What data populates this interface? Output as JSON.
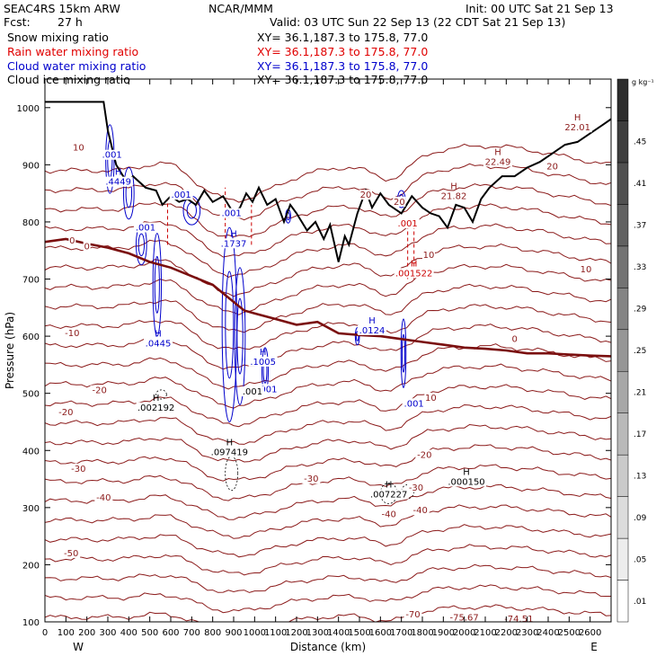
{
  "header": {
    "model": "SEAC4RS 15km ARW",
    "org": "NCAR/MMM",
    "init": "Init: 00 UTC Sat 21 Sep 13",
    "fcst_label": "Fcst:",
    "fcst_value": "27 h",
    "valid": "Valid: 03 UTC Sun 22 Sep 13 (22 CDT Sat 21 Sep 13)",
    "fields": [
      {
        "name": "Snow mixing ratio",
        "xy": "XY=  36.1,187.3 to 175.8, 77.0",
        "color": "#000000"
      },
      {
        "name": "Rain water mixing ratio",
        "xy": "XY=  36.1,187.3 to 175.8, 77.0",
        "color": "#e00000"
      },
      {
        "name": "Cloud water mixing ratio",
        "xy": "XY=  36.1,187.3 to 175.8, 77.0",
        "color": "#0000cc"
      },
      {
        "name": "Cloud ice mixing ratio",
        "xy": "XY=  36.1,187.3 to 175.8, 77.0",
        "color": "#000000"
      }
    ]
  },
  "chart_data": {
    "type": "cross-section contour",
    "xlabel": "Distance (km)",
    "ylabel": "Pressure (hPa)",
    "xlim": [
      0,
      2700
    ],
    "ylim": [
      1050,
      100
    ],
    "x_ticks": [
      0,
      100,
      200,
      300,
      400,
      500,
      600,
      700,
      800,
      900,
      1000,
      1100,
      1200,
      1300,
      1400,
      1500,
      1600,
      1700,
      1800,
      1900,
      2000,
      2100,
      2200,
      2300,
      2400,
      2500,
      2600
    ],
    "y_ticks": [
      100,
      200,
      300,
      400,
      500,
      600,
      700,
      800,
      900,
      1000
    ],
    "x_end_labels": [
      "W",
      "E"
    ],
    "colorbar": {
      "unit": "g kg⁻¹",
      "levels": [
        ".01",
        ".05",
        ".09",
        ".13",
        ".17",
        ".21",
        ".25",
        ".29",
        ".33",
        ".37",
        ".41",
        ".45"
      ]
    },
    "isotherms": [
      {
        "label": "-70",
        "pressure": 115
      },
      {
        "label": "-50",
        "pressure": 205
      },
      {
        "label": "-40",
        "pressure": 300
      },
      {
        "label": "-30",
        "pressure": 345
      },
      {
        "label": "-20",
        "pressure": 452
      },
      {
        "label": "-10",
        "pressure": 540
      },
      {
        "label": "0",
        "pressure": 610
      },
      {
        "label": "10",
        "pressure": 855
      },
      {
        "label": "20",
        "pressure": 920
      }
    ],
    "contour_labels": [
      {
        "text": "-70",
        "x": 1755,
        "p": 108,
        "color": "#8b1a1a"
      },
      {
        "text": "-75.67",
        "x": 2000,
        "p": 102,
        "color": "#8b1a1a"
      },
      {
        "text": "-74.51",
        "x": 2260,
        "p": 100,
        "color": "#8b1a1a"
      },
      {
        "text": "-50",
        "x": 125,
        "p": 215,
        "color": "#8b1a1a"
      },
      {
        "text": "-40",
        "x": 280,
        "p": 312,
        "color": "#8b1a1a"
      },
      {
        "text": "-40",
        "x": 1640,
        "p": 283,
        "color": "#8b1a1a"
      },
      {
        "text": "-40",
        "x": 1790,
        "p": 290,
        "color": "#8b1a1a"
      },
      {
        "text": "-30",
        "x": 160,
        "p": 363,
        "color": "#8b1a1a"
      },
      {
        "text": "-30",
        "x": 1270,
        "p": 345,
        "color": "#8b1a1a"
      },
      {
        "text": "-30",
        "x": 1770,
        "p": 330,
        "color": "#8b1a1a"
      },
      {
        "text": "-20",
        "x": 100,
        "p": 462,
        "color": "#8b1a1a"
      },
      {
        "text": "-20",
        "x": 260,
        "p": 500,
        "color": "#8b1a1a"
      },
      {
        "text": "-20",
        "x": 1810,
        "p": 387,
        "color": "#8b1a1a"
      },
      {
        "text": "-10",
        "x": 130,
        "p": 600,
        "color": "#8b1a1a"
      },
      {
        "text": "10",
        "x": 1840,
        "p": 487,
        "color": "#8b1a1a"
      },
      {
        "text": "0",
        "x": 2240,
        "p": 590,
        "color": "#8b1a1a"
      },
      {
        "text": "0",
        "x": 130,
        "p": 762,
        "color": "#8b1a1a"
      },
      {
        "text": "0",
        "x": 200,
        "p": 752,
        "color": "#8b1a1a"
      },
      {
        "text": "10",
        "x": 2580,
        "p": 712,
        "color": "#8b1a1a"
      },
      {
        "text": "10",
        "x": 1830,
        "p": 737,
        "color": "#8b1a1a"
      },
      {
        "text": "10",
        "x": 160,
        "p": 925,
        "color": "#8b1a1a"
      },
      {
        "text": "20",
        "x": 1530,
        "p": 842,
        "color": "#8b1a1a"
      },
      {
        "text": "20",
        "x": 1690,
        "p": 830,
        "color": "#8b1a1a"
      },
      {
        "text": "20",
        "x": 2420,
        "p": 892,
        "color": "#8b1a1a"
      }
    ],
    "extrema": [
      {
        "mark": "H",
        "value": ".002192",
        "x": 530,
        "p": 470,
        "color": "#000000"
      },
      {
        "mark": "H",
        "value": ".097419",
        "x": 880,
        "p": 392,
        "color": "#000000"
      },
      {
        "mark": "H",
        "value": ".007227",
        "x": 1640,
        "p": 318,
        "color": "#000000"
      },
      {
        "mark": "H",
        "value": ".000150",
        "x": 2010,
        "p": 340,
        "color": "#000000"
      },
      {
        "mark": "H",
        "value": ".0445",
        "x": 540,
        "p": 582,
        "color": "#0000cc"
      },
      {
        "mark": "H",
        "value": ".1005",
        "x": 1040,
        "p": 550,
        "color": "#0000cc"
      },
      {
        "mark": "H",
        "value": ".0124",
        "x": 1560,
        "p": 605,
        "color": "#0000cc"
      },
      {
        "mark": "H",
        "value": ".1737",
        "x": 900,
        "p": 757,
        "color": "#0000cc"
      },
      {
        "mark": "H",
        "value": ".4449",
        "x": 350,
        "p": 865,
        "color": "#0000cc"
      },
      {
        "mark": "H",
        "value": ".001522",
        "x": 1760,
        "p": 705,
        "color": "#cc0000"
      },
      {
        "mark": "H",
        "value": "21.82",
        "x": 1950,
        "p": 840,
        "color": "#8b1a1a"
      },
      {
        "mark": "H",
        "value": "22.49",
        "x": 2160,
        "p": 900,
        "color": "#8b1a1a"
      },
      {
        "mark": "H",
        "value": "22.01",
        "x": 2540,
        "p": 960,
        "color": "#8b1a1a"
      }
    ],
    "small_labels": [
      {
        "text": ".001",
        "x": 1060,
        "p": 502,
        "color": "#0000cc"
      },
      {
        "text": ".001",
        "x": 1760,
        "p": 477,
        "color": "#0000cc"
      },
      {
        "text": ".001",
        "x": 480,
        "p": 785,
        "color": "#0000cc"
      },
      {
        "text": ".001",
        "x": 890,
        "p": 810,
        "color": "#0000cc"
      },
      {
        "text": ".001",
        "x": 650,
        "p": 842,
        "color": "#0000cc"
      },
      {
        "text": ".001",
        "x": 320,
        "p": 912,
        "color": "#0000cc"
      },
      {
        "text": ".001",
        "x": 1730,
        "p": 792,
        "color": "#cc0000"
      },
      {
        "text": ".001",
        "x": 990,
        "p": 498,
        "color": "#000000"
      }
    ],
    "terrain": {
      "x": [
        0,
        280,
        300,
        340,
        390,
        420,
        480,
        530,
        560,
        600,
        640,
        680,
        720,
        760,
        800,
        850,
        900,
        930,
        960,
        990,
        1020,
        1060,
        1100,
        1140,
        1170,
        1200,
        1250,
        1290,
        1330,
        1360,
        1400,
        1430,
        1450,
        1490,
        1530,
        1560,
        1600,
        1640,
        1700,
        1750,
        1800,
        1840,
        1880,
        1920,
        1960,
        2000,
        2040,
        2080,
        2120,
        2180,
        2240,
        2300,
        2360,
        2420,
        2480,
        2540,
        2600,
        2660,
        2700
      ],
      "p": [
        1010,
        1010,
        960,
        900,
        870,
        880,
        860,
        855,
        830,
        845,
        835,
        840,
        830,
        855,
        835,
        845,
        815,
        825,
        850,
        835,
        860,
        830,
        840,
        800,
        830,
        815,
        785,
        800,
        770,
        795,
        730,
        775,
        760,
        815,
        855,
        825,
        850,
        830,
        815,
        845,
        825,
        815,
        810,
        790,
        830,
        825,
        800,
        840,
        860,
        880,
        880,
        895,
        905,
        920,
        935,
        940,
        955,
        970,
        980
      ]
    },
    "freezing_level": {
      "x": [
        0,
        100,
        200,
        300,
        400,
        500,
        600,
        700,
        800,
        900,
        950,
        1000,
        1100,
        1200,
        1300,
        1400,
        1500,
        1600,
        1700,
        1800,
        1900,
        2000,
        2100,
        2200,
        2300,
        2400,
        2500,
        2600,
        2700
      ],
      "p": [
        765,
        770,
        762,
        755,
        745,
        730,
        720,
        705,
        690,
        660,
        645,
        640,
        630,
        620,
        625,
        605,
        602,
        600,
        595,
        590,
        585,
        580,
        578,
        575,
        570,
        570,
        568,
        566,
        565
      ]
    }
  }
}
